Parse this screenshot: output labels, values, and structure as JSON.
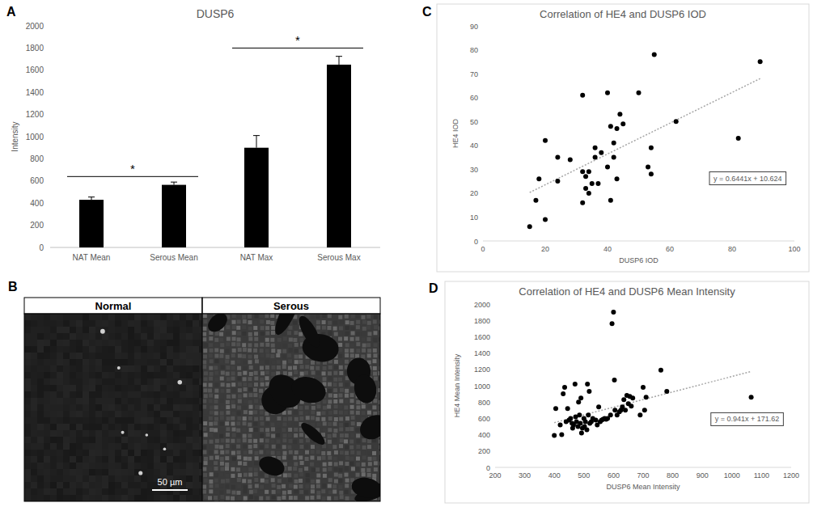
{
  "chart_data": [
    {
      "panel": "A",
      "type": "bar",
      "title": "DUSP6",
      "y_label": "Intensity",
      "categories": [
        "NAT Mean",
        "Serous Mean",
        "NAT Max",
        "Serous Max"
      ],
      "values": [
        430,
        565,
        900,
        1650
      ],
      "errors": [
        25,
        25,
        110,
        75
      ],
      "color": "#000000",
      "ylim": [
        0,
        2000
      ],
      "yticks": [
        0,
        200,
        400,
        600,
        800,
        1000,
        1200,
        1400,
        1600,
        1800,
        2000
      ],
      "grid": false,
      "annotations": [
        {
          "text": "*",
          "from": 0,
          "to": 1,
          "y": 640
        },
        {
          "text": "*",
          "from": 2,
          "to": 3,
          "y": 1800
        }
      ]
    },
    {
      "panel": "B",
      "type": "image",
      "columns": [
        "Normal",
        "Serous"
      ],
      "scale_bar": "50 µm"
    },
    {
      "panel": "C",
      "type": "scatter",
      "title": "Correlation of HE4 and DUSP6 IOD",
      "x_label": "DUSP6 IOD",
      "y_label": "HE4 IOD",
      "x": [
        15,
        17,
        18,
        20,
        20,
        24,
        24,
        28,
        32,
        32,
        32,
        33,
        33,
        34,
        34,
        35,
        36,
        36,
        37,
        38,
        40,
        40,
        41,
        41,
        42,
        42,
        43,
        43,
        44,
        45,
        50,
        53,
        54,
        54,
        55,
        62,
        82,
        89
      ],
      "y": [
        6,
        17,
        26,
        9,
        42,
        25,
        35,
        34,
        29,
        16,
        61,
        27,
        22,
        29,
        20,
        24,
        35,
        39,
        24,
        37,
        31,
        62,
        48,
        17,
        35,
        41,
        26,
        47,
        53,
        49,
        62,
        31,
        39,
        28,
        78,
        50,
        43,
        75
      ],
      "color": "#000000",
      "marker": "circle",
      "grid": false,
      "xlim": [
        0,
        100
      ],
      "xticks": [
        0,
        20,
        40,
        60,
        80,
        100
      ],
      "ylim": [
        0,
        90
      ],
      "yticks": [
        0,
        10,
        20,
        30,
        40,
        50,
        60,
        70,
        80,
        90
      ],
      "trendline": {
        "slope": 0.6441,
        "intercept": 10.624,
        "label": "y = 0.6441x + 10.624",
        "line_style": "dotted",
        "color": "#a6a6a6"
      }
    },
    {
      "panel": "D",
      "type": "scatter",
      "title": "Correlation of HE4 and DUSP6 Mean Intensity",
      "x_label": "DUSP6 Mean Intensity",
      "y_label": "HE4 Mean Intensity",
      "x": [
        400,
        405,
        420,
        425,
        430,
        435,
        440,
        445,
        450,
        455,
        460,
        462,
        465,
        470,
        472,
        475,
        480,
        482,
        485,
        488,
        490,
        492,
        495,
        500,
        502,
        505,
        510,
        512,
        515,
        518,
        520,
        525,
        530,
        540,
        545,
        550,
        555,
        560,
        565,
        570,
        575,
        580,
        590,
        595,
        600,
        603,
        605,
        612,
        620,
        625,
        630,
        635,
        640,
        645,
        650,
        655,
        660,
        665,
        690,
        700,
        705,
        710,
        760,
        780,
        1065
      ],
      "y": [
        390,
        720,
        520,
        400,
        900,
        980,
        560,
        720,
        580,
        600,
        540,
        480,
        520,
        1020,
        620,
        560,
        500,
        800,
        640,
        540,
        850,
        420,
        480,
        600,
        500,
        560,
        460,
        1020,
        640,
        930,
        540,
        560,
        600,
        580,
        520,
        740,
        560,
        580,
        590,
        600,
        590,
        600,
        640,
        1760,
        1900,
        1070,
        700,
        640,
        680,
        700,
        740,
        830,
        700,
        880,
        780,
        870,
        750,
        850,
        640,
        980,
        700,
        860,
        1190,
        930,
        860
      ],
      "color": "#000000",
      "marker": "circle",
      "grid": false,
      "xlim": [
        200,
        1200
      ],
      "xticks": [
        200,
        300,
        400,
        500,
        600,
        700,
        800,
        900,
        1000,
        1100,
        1200
      ],
      "ylim": [
        0,
        2000
      ],
      "yticks": [
        0,
        200,
        400,
        600,
        800,
        1000,
        1200,
        1400,
        1600,
        1800,
        2000
      ],
      "trendline": {
        "slope": 0.941,
        "intercept": 171.62,
        "label": "y = 0.941x + 171.62",
        "line_style": "dotted",
        "color": "#a6a6a6"
      }
    }
  ]
}
